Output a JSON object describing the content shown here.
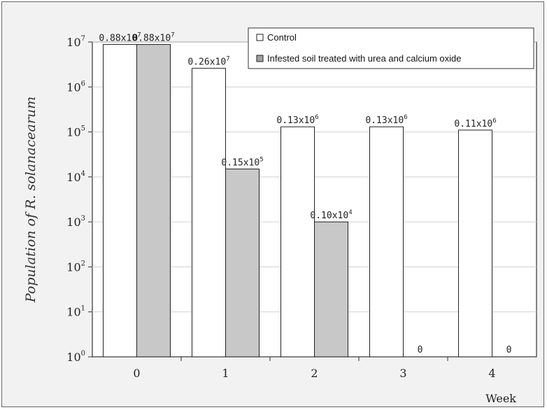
{
  "chart_data": {
    "type": "bar",
    "title": "",
    "xlabel": "Week",
    "ylabel_prefix": "Population of ",
    "ylabel_italic": "R. solanacearum",
    "yscale": "log",
    "ylim": [
      1,
      10000000
    ],
    "ytick_base": "10",
    "yticks_exp": [
      "0",
      "1",
      "2",
      "3",
      "4",
      "5",
      "6",
      "7"
    ],
    "categories": [
      "0",
      "1",
      "2",
      "3",
      "4"
    ],
    "series": [
      {
        "name": "Control",
        "color": "#ffffff",
        "values": [
          8800000,
          2600000,
          130000,
          130000,
          110000
        ],
        "labels": [
          {
            "m": "0.88x10",
            "e": "7"
          },
          {
            "m": "0.26x10",
            "e": "7"
          },
          {
            "m": "0.13x10",
            "e": "6"
          },
          {
            "m": "0.13x10",
            "e": "6"
          },
          {
            "m": "0.11x10",
            "e": "6"
          }
        ]
      },
      {
        "name": "Infested soil treated with urea and calcium oxide",
        "color": "#c8c8c8",
        "values": [
          8800000,
          15000,
          1000,
          0,
          0
        ],
        "labels": [
          {
            "m": "0.88x10",
            "e": "7"
          },
          {
            "m": "0.15x10",
            "e": "5"
          },
          {
            "m": "0.10x10",
            "e": "4"
          },
          {
            "m": "0",
            "e": ""
          },
          {
            "m": "0",
            "e": ""
          }
        ]
      }
    ],
    "grid": true,
    "legend_position": "top-right"
  }
}
